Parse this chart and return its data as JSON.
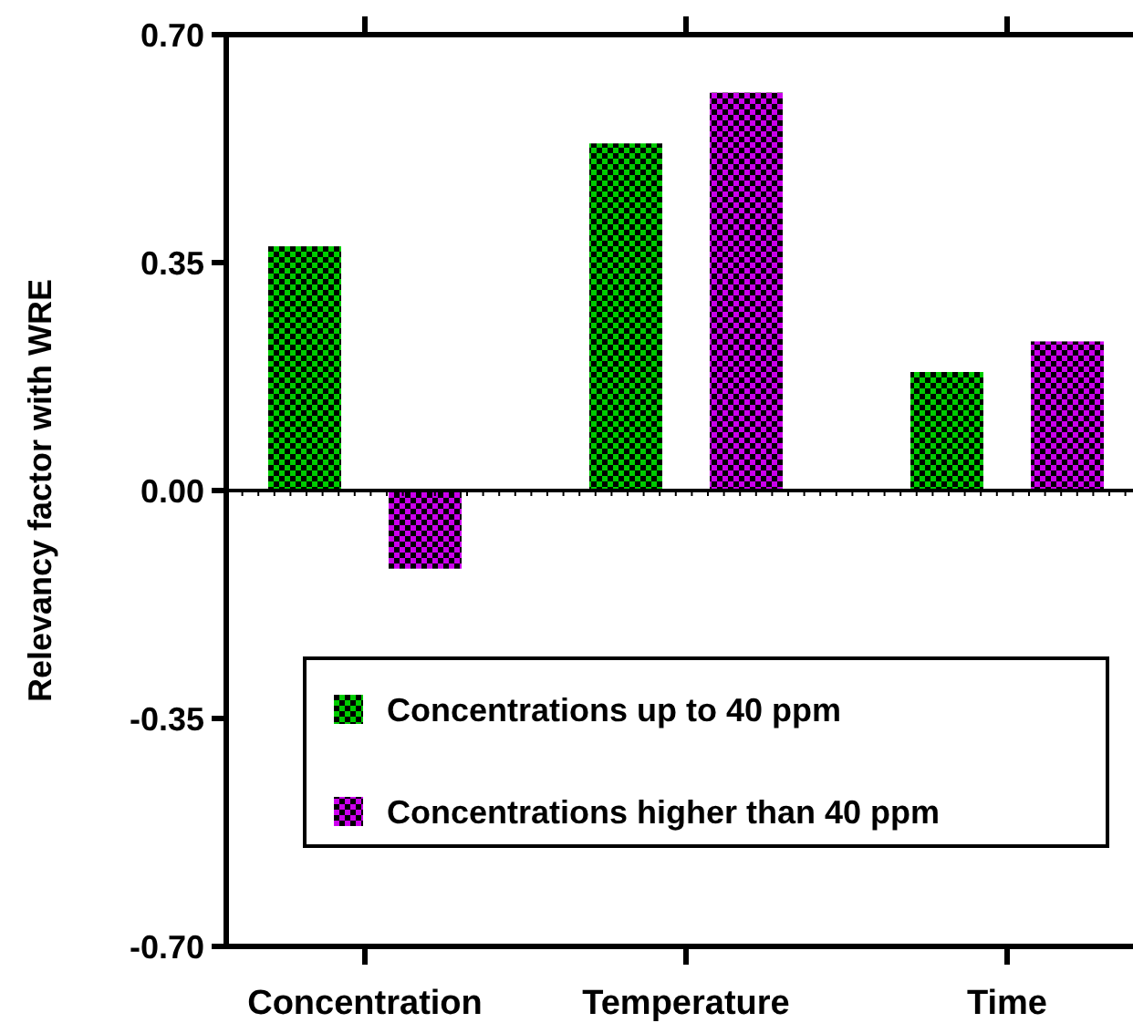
{
  "chart_data": {
    "type": "bar",
    "ylabel": "Relevancy factor with WRE",
    "categories": [
      "Concentration",
      "Temperature",
      "Time"
    ],
    "series": [
      {
        "name": "Concentrations up to 40 ppm",
        "color": "#00cc00",
        "values": [
          0.375,
          0.533,
          0.182
        ]
      },
      {
        "name": "Concentrations higher than 40 ppm",
        "color": "#cc00ee",
        "values": [
          -0.12,
          0.611,
          0.229
        ]
      }
    ],
    "ylim": [
      -0.7,
      0.7
    ],
    "yticks": [
      {
        "value": -0.7,
        "label": "-0.70"
      },
      {
        "value": -0.35,
        "label": "-0.35"
      },
      {
        "value": 0,
        "label": "0.00"
      },
      {
        "value": 0.35,
        "label": "0.35"
      },
      {
        "value": 0.7,
        "label": "0.70"
      }
    ],
    "legend": "bottom right"
  }
}
